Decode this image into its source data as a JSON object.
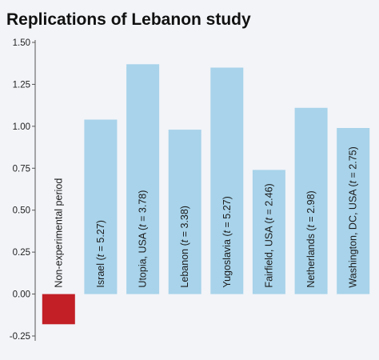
{
  "chart_data": {
    "type": "bar",
    "title": "Replications of Lebanon study",
    "xlabel": "",
    "ylabel": "",
    "ylim": [
      -0.25,
      1.5
    ],
    "yticks": [
      "1.50",
      "1.25",
      "1.00",
      "0.75",
      "0.50",
      "0.25",
      "0.00",
      "-0.25"
    ],
    "tick_values": [
      1.5,
      1.25,
      1.0,
      0.75,
      0.5,
      0.25,
      0.0,
      -0.25
    ],
    "grid": false,
    "categories": [
      "Non-experimental period",
      "Israel (t = 5.27)",
      "Utopia, USA (t = 3.78)",
      "Lebanon (t = 3.38)",
      "Yugoslavia (t = 5.27)",
      "Fairfield, USA (t = 2.46)",
      "Netherlands (t = 2.98)",
      "Washington, DC, USA (t = 2.75)"
    ],
    "label_parts": [
      {
        "pre": "Non-experimental period",
        "t": "",
        "post": ""
      },
      {
        "pre": "Israel (",
        "t": "t",
        "post": " = 5.27)"
      },
      {
        "pre": "Utopia, USA (",
        "t": "t",
        "post": " = 3.78)"
      },
      {
        "pre": "Lebanon (",
        "t": "t",
        "post": " = 3.38)"
      },
      {
        "pre": "Yugoslavia (",
        "t": "t",
        "post": " = 5.27)"
      },
      {
        "pre": "Fairfield, USA (",
        "t": "t",
        "post": " = 2.46)"
      },
      {
        "pre": "Netherlands (",
        "t": "t",
        "post": " = 2.98)"
      },
      {
        "pre": "Washington, DC, USA (",
        "t": "t",
        "post": " = 2.75)"
      }
    ],
    "values": [
      -0.18,
      1.04,
      1.37,
      0.98,
      1.35,
      0.74,
      1.11,
      0.99
    ],
    "colors": {
      "positive": "#a8d3ea",
      "negative": "#c21f26",
      "background": "#f2f4f8",
      "axis": "#555555"
    }
  }
}
